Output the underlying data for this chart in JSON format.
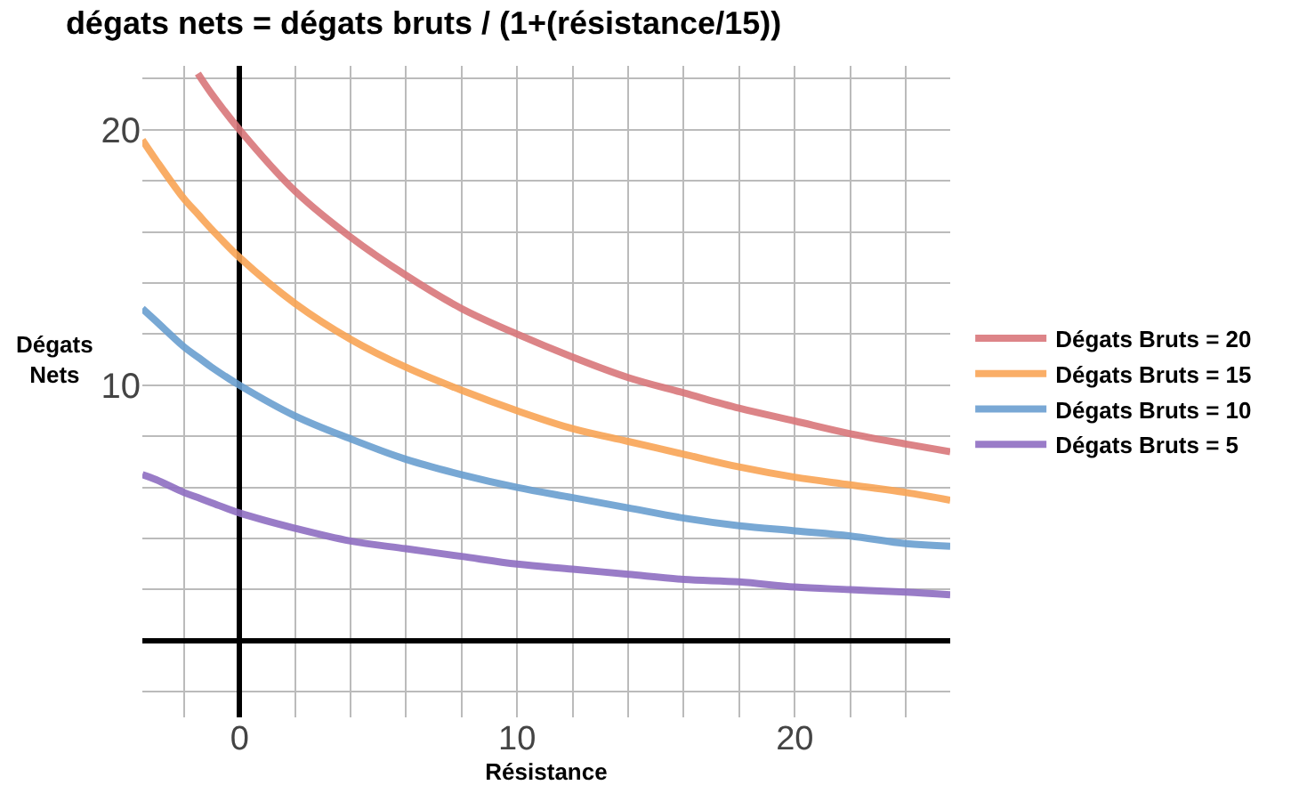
{
  "chart_data": {
    "type": "line",
    "title": "dégats nets = dégats bruts / (1+(résistance/15))",
    "xlabel": "Résistance",
    "ylabel": "Dégats\nNets",
    "x": [
      -3.5,
      -3,
      -2,
      -1.5,
      -1,
      0,
      2,
      4,
      6,
      8,
      10,
      12,
      14,
      16,
      18,
      20,
      22,
      24,
      25.6
    ],
    "series": [
      {
        "name": "Dégats Bruts = 20",
        "color": "#d9777b",
        "values": [
          null,
          null,
          null,
          22.2,
          21.4,
          20,
          17.6,
          15.8,
          14.3,
          13.0,
          12,
          11.1,
          10.3,
          9.7,
          9.1,
          8.6,
          8.1,
          7.7,
          7.4
        ]
      },
      {
        "name": "Dégats Bruts = 15",
        "color": "#f9a556",
        "values": [
          19.6,
          18.8,
          17.3,
          16.7,
          16.1,
          15,
          13.2,
          11.8,
          10.7,
          9.8,
          9,
          8.3,
          7.8,
          7.3,
          6.8,
          6.4,
          6.1,
          5.8,
          5.5
        ]
      },
      {
        "name": "Dégats Bruts = 10",
        "color": "#6a9fd0",
        "values": [
          13.0,
          12.5,
          11.5,
          11.1,
          10.7,
          10,
          8.8,
          7.9,
          7.1,
          6.5,
          6,
          5.6,
          5.2,
          4.8,
          4.5,
          4.3,
          4.1,
          3.8,
          3.7
        ]
      },
      {
        "name": "Dégats Bruts = 5",
        "color": "#8f6ec2",
        "values": [
          6.5,
          6.3,
          5.8,
          5.6,
          5.4,
          5,
          4.4,
          3.9,
          3.6,
          3.3,
          3,
          2.8,
          2.6,
          2.4,
          2.3,
          2.1,
          2.0,
          1.9,
          1.8
        ]
      }
    ],
    "xlim": [
      -3.5,
      25.6
    ],
    "ylim": [
      -3,
      22.5
    ],
    "xticks": [
      {
        "value": -2,
        "label": null
      },
      0,
      {
        "value": 2,
        "label": null
      },
      {
        "value": 4,
        "label": null
      },
      {
        "value": 6,
        "label": null
      },
      {
        "value": 8,
        "label": null
      },
      10,
      {
        "value": 12,
        "label": null
      },
      {
        "value": 14,
        "label": null
      },
      {
        "value": 16,
        "label": null
      },
      {
        "value": 18,
        "label": null
      },
      20,
      {
        "value": 22,
        "label": null
      },
      {
        "value": 24,
        "label": null
      }
    ],
    "yticks": [
      {
        "value": -2,
        "label": null
      },
      {
        "value": 2,
        "label": null
      },
      {
        "value": 4,
        "label": null
      },
      {
        "value": 6,
        "label": null
      },
      {
        "value": 8,
        "label": null
      },
      10,
      {
        "value": 12,
        "label": null
      },
      {
        "value": 14,
        "label": null
      },
      {
        "value": 16,
        "label": null
      },
      {
        "value": 18,
        "label": null
      },
      20,
      {
        "value": 22,
        "label": null
      }
    ],
    "grid": true,
    "legend": "right",
    "line_style": "solid",
    "marker": "none"
  }
}
